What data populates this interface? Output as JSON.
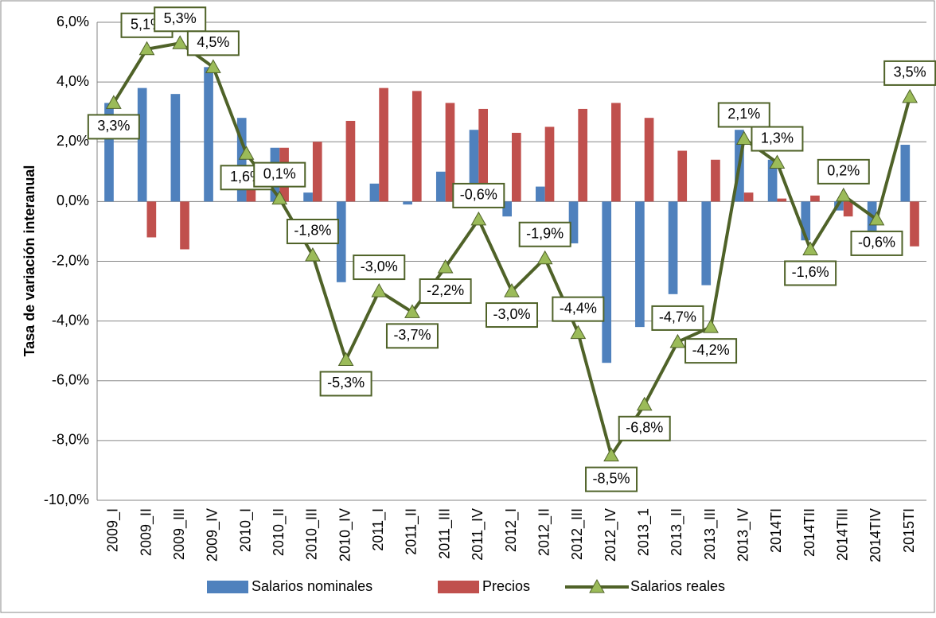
{
  "chart_data": {
    "type": "bar-line",
    "y_label": "Tasa de variación interanual",
    "categories": [
      "2009_I",
      "2009_II",
      "2009_III",
      "2009_IV",
      "2010_I",
      "2010_II",
      "2010_III",
      "2010_IV",
      "2011_I",
      "2011_II",
      "2011_III",
      "2011_IV",
      "2012_I",
      "2012_II",
      "2012_III",
      "2012_IV",
      "2013_1",
      "2013_II",
      "2013_III",
      "2013_IV",
      "2014TI",
      "2014TII",
      "2014TIII",
      "2014TIV",
      "2015TI"
    ],
    "series": [
      {
        "name": "Salarios nominales",
        "color": "#4f81bd",
        "kind": "bar",
        "values": [
          3.3,
          3.8,
          3.6,
          4.5,
          2.8,
          1.8,
          0.3,
          -2.7,
          0.6,
          -0.1,
          1.0,
          2.4,
          -0.5,
          0.5,
          -1.4,
          -5.4,
          -4.2,
          -3.1,
          -2.8,
          2.4,
          1.4,
          -1.3,
          -0.3,
          -1.2,
          1.9
        ]
      },
      {
        "name": "Precios",
        "color": "#c0504d",
        "kind": "bar",
        "values": [
          0,
          -1.2,
          -1.6,
          0,
          1.1,
          1.8,
          2.0,
          2.7,
          3.8,
          3.7,
          3.3,
          3.1,
          2.3,
          2.5,
          3.1,
          3.3,
          2.8,
          1.7,
          1.4,
          0.3,
          0.1,
          0.2,
          -0.5,
          0,
          -1.5
        ]
      },
      {
        "name": "Salarios reales",
        "color": "#4f6228",
        "marker_color": "#9bbb59",
        "kind": "line",
        "values": [
          3.3,
          5.1,
          5.3,
          4.5,
          1.6,
          0.1,
          -1.8,
          -5.3,
          -3.0,
          -3.7,
          -2.2,
          -0.6,
          -3.0,
          -1.9,
          -4.4,
          -8.5,
          -6.8,
          -4.7,
          -4.2,
          2.1,
          1.3,
          -1.6,
          0.2,
          -0.6,
          3.5
        ],
        "value_labels": [
          "3,3%",
          "5,1%",
          "5,3%",
          "4,5%",
          "1,6%",
          "0,1%",
          "-1,8%",
          "-5,3%",
          "-3,0%",
          "-3,7%",
          "-2,2%",
          "-0,6%",
          "-3,0%",
          "-1,9%",
          "-4,4%",
          "-8,5%",
          "-6,8%",
          "-4,7%",
          "-4,2%",
          "2,1%",
          "1,3%",
          "-1,6%",
          "0,2%",
          "-0,6%",
          "3,5%"
        ]
      }
    ],
    "ylim": [
      -10,
      6
    ],
    "yticks": [
      {
        "value": -10,
        "label": "-10,0%"
      },
      {
        "value": -8,
        "label": "-8,0%"
      },
      {
        "value": -6,
        "label": "-6,0%"
      },
      {
        "value": -4,
        "label": "-4,0%"
      },
      {
        "value": -2,
        "label": "-2,0%"
      },
      {
        "value": 0,
        "label": "0,0%"
      },
      {
        "value": 2,
        "label": "2,0%"
      },
      {
        "value": 4,
        "label": "4,0%"
      },
      {
        "value": 6,
        "label": "6,0%"
      }
    ],
    "grid": true,
    "legend": "bottom"
  }
}
